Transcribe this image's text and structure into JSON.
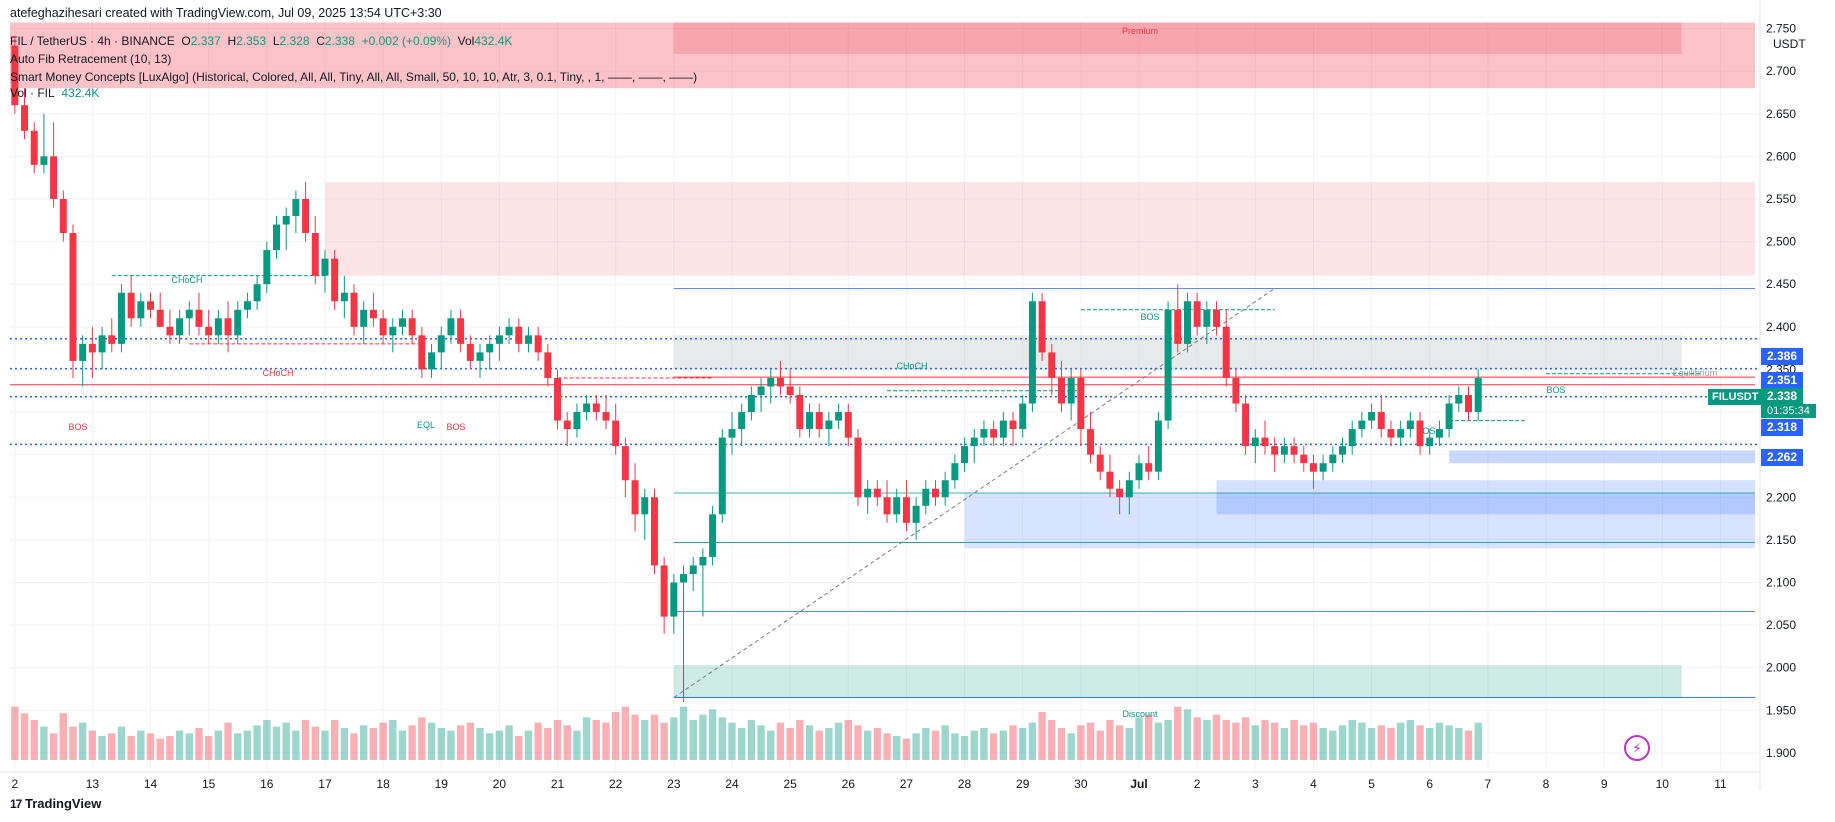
{
  "caption": "atefeghazihesari created with TradingView.com, Jul 09, 2025 13:54 UTC+3:30",
  "symbol_line": {
    "name": "FIL / TetherUS · 4h · BINANCE",
    "o_label": "O",
    "o": "2.337",
    "h_label": "H",
    "h": "2.353",
    "l_label": "L",
    "l": "2.328",
    "c_label": "C",
    "c": "2.338",
    "change": "+0.002 (+0.09%)",
    "vol_label": "Vol",
    "vol": "432.4K"
  },
  "indicators": [
    "Auto Fib Retracement (10, 13)",
    "Smart Money Concepts [LuxAlgo] (Historical, Colored, All, All, Tiny, All, All, Small, 50, 10, 10, Atr, 3, 0.1, Tiny, , 1, ——, ——, ——)"
  ],
  "vol_indicator": {
    "label": "Vol · FIL",
    "value": "432.4K"
  },
  "currency": "USDT",
  "branding": "TradingView",
  "colors": {
    "up": "#089981",
    "down": "#f23645",
    "blue": "#2962ff"
  },
  "price_tags": {
    "p2386": "2.386",
    "p2351": "2.351",
    "p2338": "2.338",
    "countdown": "01:35:34",
    "p2318": "2.318",
    "p2262": "2.262",
    "symbol": "FILUSDT"
  },
  "chart_data": {
    "type": "candlestick",
    "ylim": [
      1.88,
      2.76
    ],
    "y_ticks": [
      "2.750",
      "2.700",
      "2.650",
      "2.600",
      "2.550",
      "2.500",
      "2.450",
      "2.400",
      "2.350",
      "2.300",
      "2.250",
      "2.200",
      "2.150",
      "2.100",
      "2.050",
      "2.000",
      "1.950",
      "1.900"
    ],
    "x_ticks": [
      "2",
      "13",
      "14",
      "15",
      "16",
      "17",
      "18",
      "19",
      "20",
      "21",
      "22",
      "23",
      "24",
      "25",
      "26",
      "27",
      "28",
      "29",
      "30",
      "Jul",
      "2",
      "3",
      "4",
      "5",
      "6",
      "7",
      "8",
      "9",
      "10",
      "11"
    ],
    "x_tick_index": [
      0,
      8,
      14,
      20,
      26,
      32,
      38,
      44,
      50,
      56,
      62,
      68,
      74,
      80,
      86,
      92,
      98,
      104,
      110,
      116,
      122,
      128,
      134,
      140,
      146,
      152,
      158,
      164,
      170,
      176
    ],
    "annotations": {
      "premium": "Premium",
      "discount": "Discount",
      "equilibrium": "Equilibrium",
      "bos": "BOS",
      "choch": "CHoCH",
      "eql": "EQL"
    },
    "candles": [
      [
        2.73,
        2.74,
        2.65,
        2.66
      ],
      [
        2.66,
        2.68,
        2.62,
        2.63
      ],
      [
        2.63,
        2.64,
        2.58,
        2.59
      ],
      [
        2.59,
        2.65,
        2.58,
        2.6
      ],
      [
        2.6,
        2.64,
        2.54,
        2.55
      ],
      [
        2.55,
        2.56,
        2.5,
        2.51
      ],
      [
        2.51,
        2.52,
        2.34,
        2.36
      ],
      [
        2.36,
        2.39,
        2.33,
        2.38
      ],
      [
        2.38,
        2.4,
        2.34,
        2.37
      ],
      [
        2.37,
        2.4,
        2.35,
        2.39
      ],
      [
        2.39,
        2.41,
        2.37,
        2.38
      ],
      [
        2.38,
        2.45,
        2.37,
        2.44
      ],
      [
        2.44,
        2.46,
        2.4,
        2.41
      ],
      [
        2.41,
        2.44,
        2.4,
        2.43
      ],
      [
        2.43,
        2.44,
        2.41,
        2.42
      ],
      [
        2.42,
        2.44,
        2.4,
        2.4
      ],
      [
        2.4,
        2.42,
        2.38,
        2.39
      ],
      [
        2.39,
        2.42,
        2.38,
        2.41
      ],
      [
        2.41,
        2.43,
        2.39,
        2.42
      ],
      [
        2.42,
        2.44,
        2.39,
        2.4
      ],
      [
        2.4,
        2.42,
        2.38,
        2.39
      ],
      [
        2.39,
        2.42,
        2.38,
        2.41
      ],
      [
        2.41,
        2.43,
        2.37,
        2.39
      ],
      [
        2.39,
        2.43,
        2.38,
        2.42
      ],
      [
        2.42,
        2.44,
        2.41,
        2.43
      ],
      [
        2.43,
        2.46,
        2.42,
        2.45
      ],
      [
        2.45,
        2.5,
        2.44,
        2.49
      ],
      [
        2.49,
        2.53,
        2.48,
        2.52
      ],
      [
        2.52,
        2.54,
        2.49,
        2.53
      ],
      [
        2.53,
        2.56,
        2.51,
        2.55
      ],
      [
        2.55,
        2.57,
        2.5,
        2.51
      ],
      [
        2.51,
        2.53,
        2.45,
        2.46
      ],
      [
        2.46,
        2.49,
        2.44,
        2.48
      ],
      [
        2.48,
        2.49,
        2.42,
        2.43
      ],
      [
        2.43,
        2.46,
        2.41,
        2.44
      ],
      [
        2.44,
        2.45,
        2.39,
        2.4
      ],
      [
        2.4,
        2.43,
        2.38,
        2.42
      ],
      [
        2.42,
        2.44,
        2.4,
        2.41
      ],
      [
        2.41,
        2.42,
        2.38,
        2.39
      ],
      [
        2.39,
        2.41,
        2.37,
        2.4
      ],
      [
        2.4,
        2.42,
        2.39,
        2.41
      ],
      [
        2.41,
        2.42,
        2.38,
        2.39
      ],
      [
        2.39,
        2.4,
        2.34,
        2.35
      ],
      [
        2.35,
        2.38,
        2.34,
        2.37
      ],
      [
        2.37,
        2.4,
        2.35,
        2.39
      ],
      [
        2.39,
        2.42,
        2.38,
        2.41
      ],
      [
        2.41,
        2.42,
        2.37,
        2.38
      ],
      [
        2.38,
        2.39,
        2.35,
        2.36
      ],
      [
        2.36,
        2.38,
        2.34,
        2.37
      ],
      [
        2.37,
        2.39,
        2.35,
        2.38
      ],
      [
        2.38,
        2.4,
        2.36,
        2.39
      ],
      [
        2.39,
        2.41,
        2.38,
        2.4
      ],
      [
        2.4,
        2.41,
        2.37,
        2.38
      ],
      [
        2.38,
        2.4,
        2.37,
        2.39
      ],
      [
        2.39,
        2.4,
        2.36,
        2.37
      ],
      [
        2.37,
        2.38,
        2.33,
        2.34
      ],
      [
        2.34,
        2.35,
        2.28,
        2.29
      ],
      [
        2.29,
        2.3,
        2.26,
        2.28
      ],
      [
        2.28,
        2.31,
        2.27,
        2.3
      ],
      [
        2.3,
        2.32,
        2.29,
        2.31
      ],
      [
        2.31,
        2.32,
        2.29,
        2.3
      ],
      [
        2.3,
        2.32,
        2.28,
        2.29
      ],
      [
        2.29,
        2.31,
        2.25,
        2.26
      ],
      [
        2.26,
        2.27,
        2.2,
        2.22
      ],
      [
        2.22,
        2.24,
        2.16,
        2.18
      ],
      [
        2.18,
        2.21,
        2.15,
        2.2
      ],
      [
        2.2,
        2.21,
        2.11,
        2.12
      ],
      [
        2.12,
        2.13,
        2.04,
        2.06
      ],
      [
        2.06,
        2.11,
        2.04,
        2.1
      ],
      [
        2.1,
        2.12,
        1.96,
        2.11
      ],
      [
        2.11,
        2.13,
        2.09,
        2.12
      ],
      [
        2.12,
        2.14,
        2.06,
        2.13
      ],
      [
        2.13,
        2.19,
        2.12,
        2.18
      ],
      [
        2.18,
        2.28,
        2.17,
        2.27
      ],
      [
        2.27,
        2.3,
        2.25,
        2.28
      ],
      [
        2.28,
        2.31,
        2.26,
        2.3
      ],
      [
        2.3,
        2.33,
        2.29,
        2.32
      ],
      [
        2.32,
        2.34,
        2.3,
        2.33
      ],
      [
        2.33,
        2.35,
        2.31,
        2.34
      ],
      [
        2.34,
        2.36,
        2.32,
        2.33
      ],
      [
        2.33,
        2.35,
        2.31,
        2.32
      ],
      [
        2.32,
        2.33,
        2.27,
        2.28
      ],
      [
        2.28,
        2.31,
        2.27,
        2.3
      ],
      [
        2.3,
        2.31,
        2.27,
        2.28
      ],
      [
        2.28,
        2.3,
        2.26,
        2.29
      ],
      [
        2.29,
        2.31,
        2.28,
        2.3
      ],
      [
        2.3,
        2.31,
        2.26,
        2.27
      ],
      [
        2.27,
        2.28,
        2.19,
        2.2
      ],
      [
        2.2,
        2.22,
        2.18,
        2.21
      ],
      [
        2.21,
        2.22,
        2.19,
        2.2
      ],
      [
        2.2,
        2.22,
        2.17,
        2.18
      ],
      [
        2.18,
        2.21,
        2.17,
        2.2
      ],
      [
        2.2,
        2.22,
        2.16,
        2.17
      ],
      [
        2.17,
        2.2,
        2.15,
        2.19
      ],
      [
        2.19,
        2.22,
        2.18,
        2.21
      ],
      [
        2.21,
        2.22,
        2.19,
        2.2
      ],
      [
        2.2,
        2.23,
        2.19,
        2.22
      ],
      [
        2.22,
        2.25,
        2.21,
        2.24
      ],
      [
        2.24,
        2.27,
        2.23,
        2.26
      ],
      [
        2.26,
        2.28,
        2.24,
        2.27
      ],
      [
        2.27,
        2.29,
        2.26,
        2.28
      ],
      [
        2.28,
        2.29,
        2.26,
        2.27
      ],
      [
        2.27,
        2.3,
        2.26,
        2.29
      ],
      [
        2.29,
        2.3,
        2.26,
        2.28
      ],
      [
        2.28,
        2.32,
        2.27,
        2.31
      ],
      [
        2.31,
        2.44,
        2.3,
        2.43
      ],
      [
        2.43,
        2.44,
        2.36,
        2.37
      ],
      [
        2.37,
        2.38,
        2.32,
        2.34
      ],
      [
        2.34,
        2.36,
        2.3,
        2.31
      ],
      [
        2.31,
        2.35,
        2.29,
        2.34
      ],
      [
        2.34,
        2.35,
        2.26,
        2.28
      ],
      [
        2.28,
        2.3,
        2.24,
        2.25
      ],
      [
        2.25,
        2.26,
        2.22,
        2.23
      ],
      [
        2.23,
        2.25,
        2.2,
        2.21
      ],
      [
        2.21,
        2.22,
        2.18,
        2.2
      ],
      [
        2.2,
        2.23,
        2.18,
        2.22
      ],
      [
        2.22,
        2.25,
        2.21,
        2.24
      ],
      [
        2.24,
        2.26,
        2.22,
        2.23
      ],
      [
        2.23,
        2.3,
        2.22,
        2.29
      ],
      [
        2.29,
        2.43,
        2.28,
        2.42
      ],
      [
        2.42,
        2.45,
        2.37,
        2.38
      ],
      [
        2.38,
        2.44,
        2.37,
        2.43
      ],
      [
        2.43,
        2.44,
        2.39,
        2.4
      ],
      [
        2.4,
        2.43,
        2.38,
        2.42
      ],
      [
        2.42,
        2.43,
        2.39,
        2.4
      ],
      [
        2.4,
        2.42,
        2.33,
        2.34
      ],
      [
        2.34,
        2.35,
        2.3,
        2.31
      ],
      [
        2.31,
        2.32,
        2.25,
        2.26
      ],
      [
        2.26,
        2.28,
        2.24,
        2.27
      ],
      [
        2.27,
        2.29,
        2.25,
        2.26
      ],
      [
        2.26,
        2.27,
        2.23,
        2.25
      ],
      [
        2.25,
        2.27,
        2.24,
        2.26
      ],
      [
        2.26,
        2.27,
        2.24,
        2.25
      ],
      [
        2.25,
        2.26,
        2.23,
        2.24
      ],
      [
        2.24,
        2.25,
        2.21,
        2.23
      ],
      [
        2.23,
        2.25,
        2.22,
        2.24
      ],
      [
        2.24,
        2.26,
        2.23,
        2.25
      ],
      [
        2.25,
        2.27,
        2.24,
        2.26
      ],
      [
        2.26,
        2.29,
        2.25,
        2.28
      ],
      [
        2.28,
        2.3,
        2.27,
        2.29
      ],
      [
        2.29,
        2.31,
        2.28,
        2.3
      ],
      [
        2.3,
        2.32,
        2.27,
        2.28
      ],
      [
        2.28,
        2.29,
        2.26,
        2.27
      ],
      [
        2.27,
        2.29,
        2.26,
        2.28
      ],
      [
        2.28,
        2.3,
        2.27,
        2.29
      ],
      [
        2.29,
        2.3,
        2.25,
        2.26
      ],
      [
        2.26,
        2.28,
        2.25,
        2.27
      ],
      [
        2.27,
        2.29,
        2.26,
        2.28
      ],
      [
        2.28,
        2.32,
        2.27,
        2.31
      ],
      [
        2.31,
        2.33,
        2.3,
        2.32
      ],
      [
        2.32,
        2.33,
        2.29,
        2.3
      ],
      [
        2.3,
        2.35,
        2.29,
        2.34
      ]
    ],
    "volume": [
      40,
      35,
      30,
      25,
      20,
      35,
      25,
      28,
      22,
      18,
      20,
      25,
      18,
      22,
      20,
      16,
      18,
      22,
      20,
      24,
      18,
      22,
      28,
      20,
      22,
      26,
      30,
      25,
      28,
      22,
      30,
      25,
      22,
      30,
      24,
      20,
      26,
      24,
      28,
      30,
      22,
      26,
      32,
      28,
      24,
      22,
      26,
      28,
      24,
      20,
      22,
      26,
      18,
      22,
      28,
      24,
      30,
      26,
      22,
      32,
      30,
      28,
      36,
      40,
      34,
      30,
      34,
      28,
      32,
      40,
      30,
      34,
      38,
      32,
      28,
      24,
      30,
      26,
      22,
      28,
      24,
      30,
      26,
      22,
      24,
      28,
      30,
      26,
      22,
      24,
      20,
      18,
      16,
      20,
      24,
      22,
      26,
      20,
      18,
      22,
      24,
      20,
      22,
      26,
      24,
      28,
      36,
      30,
      24,
      20,
      26,
      28,
      22,
      30,
      26,
      24,
      32,
      34,
      28,
      30,
      40,
      38,
      32,
      30,
      34,
      30,
      28,
      32,
      26,
      30,
      28,
      24,
      30,
      26,
      28,
      24,
      22,
      26,
      30,
      28,
      24,
      26,
      24,
      28,
      30,
      26,
      24,
      28,
      26,
      24,
      22,
      28,
      30,
      26,
      34,
      30,
      32
    ],
    "volume_ylim": [
      0,
      150
    ]
  }
}
